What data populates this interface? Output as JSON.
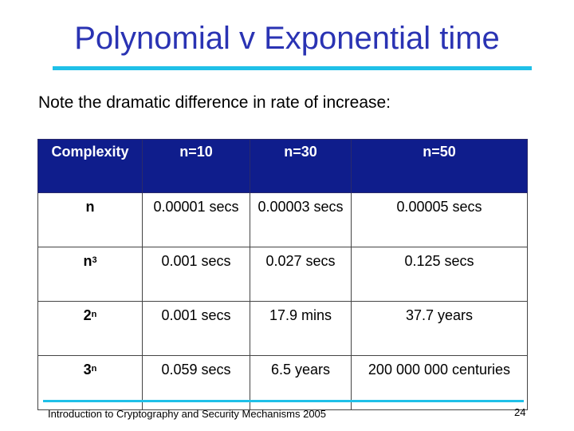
{
  "slide": {
    "title": "Polynomial v Exponential time",
    "subtitle": "Note the dramatic difference in rate of increase:",
    "footer": "Introduction to Cryptography and Security Mechanisms 2005",
    "page_number": "24"
  },
  "table": {
    "headers": [
      "Complexity",
      "n=10",
      "n=30",
      "n=50"
    ],
    "rows": [
      {
        "label_base": "n",
        "label_exp": "",
        "values": [
          "0.00001 secs",
          "0.00003 secs",
          "0.00005 secs"
        ]
      },
      {
        "label_base": "n",
        "label_exp": "3",
        "values": [
          "0.001 secs",
          "0.027 secs",
          "0.125 secs"
        ]
      },
      {
        "label_base": "2",
        "label_exp": "n",
        "values": [
          "0.001 secs",
          "17.9 mins",
          "37.7 years"
        ]
      },
      {
        "label_base": "3",
        "label_exp": "n",
        "values": [
          "0.059 secs",
          "6.5 years",
          "200 000 000 centuries"
        ]
      }
    ]
  },
  "colors": {
    "title": "#2a33b3",
    "accent_rule": "#1fc0e8",
    "header_background": "#0f1d8c"
  }
}
